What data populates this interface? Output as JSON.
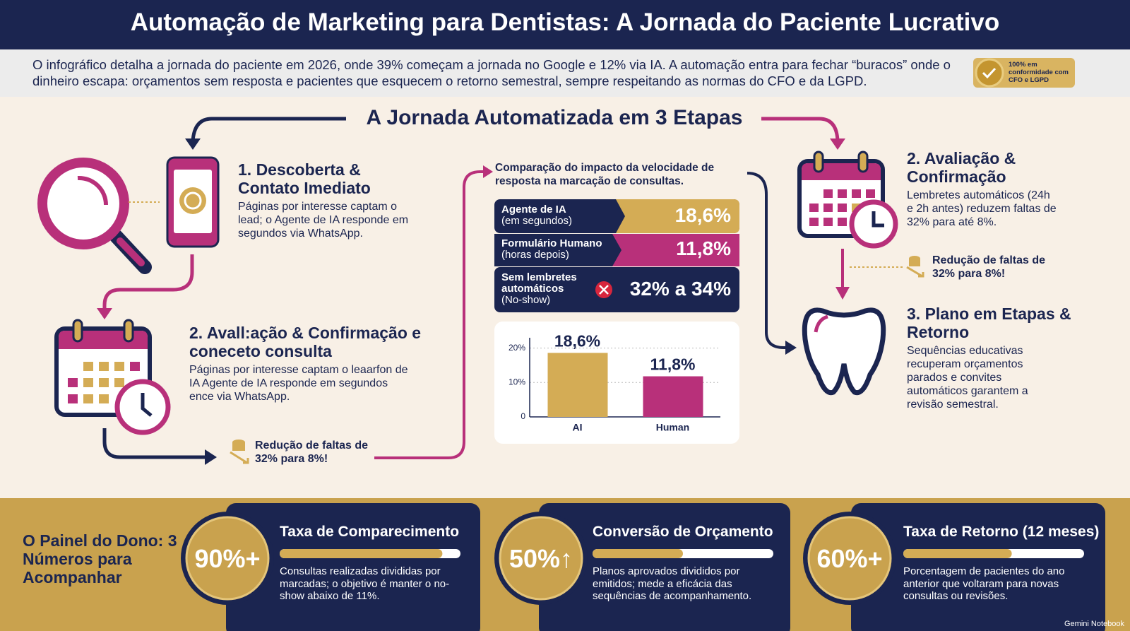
{
  "header": {
    "title": "Automação de Marketing para Dentistas: A Jornada do Paciente Lucrativo"
  },
  "intro": {
    "text": "O infográfico detalha a jornada do paciente em 2026, onde 39% começam a jornada no Google e 12% via IA. A automação entra para fechar “buracos” onde o dinheiro escapa: orçamentos sem resposta e pacientes que esquecem o retorno semestral, sempre respeitando as normas do CFO e da LGPD.",
    "badge": "100% em conformidade com CFO e LGPD"
  },
  "journey": {
    "title": "A Jornada Automatizada em 3 Etapas",
    "steps": [
      {
        "title": "1. Descoberta & Contato Imediato",
        "text": "Páginas por interesse captam o lead; o Agente de IA responde em segundos via WhatsApp."
      },
      {
        "title": "2. Avall:ação & Confirmação e coneceto consulta",
        "text": "Páginas por interesse captam o leaarfon de IA Agente de IA responde em segundos ence via WhatsApp."
      },
      {
        "title": "2. Avaliação & Confirmação",
        "text": "Lembretes automáticos (24h e 2h antes) reduzem faltas de 32% para até 8%."
      },
      {
        "title": "3. Plano em Etapas & Retorno",
        "text": "Sequências educativas recuperam orçamentos parados e convites automáticos garantem a revisão semestral."
      }
    ],
    "notes": [
      "Redução de faltas de 32% para 8%!",
      "Redução de faltas de 32% para 8%!"
    ]
  },
  "comparison": {
    "title": "Comparação do impacto da velocidade de resposta na marcação de consultas.",
    "rows": [
      {
        "label": "Agente de IA",
        "sublabel": "(em segundos)",
        "value": "18,6%"
      },
      {
        "label": "Formulário Humano",
        "sublabel": "(horas depois)",
        "value": "11,8%"
      },
      {
        "label": "Sem lembretes automáticos",
        "sublabel": "(No-show)",
        "value": "32% a 34%"
      }
    ]
  },
  "chart_data": {
    "type": "bar",
    "categories": [
      "AI",
      "Human"
    ],
    "values": [
      18.6,
      11.8
    ],
    "value_labels": [
      "18,6%",
      "11,8%"
    ],
    "colors": [
      "#d4ac55",
      "#b8307a"
    ],
    "ylim": [
      0,
      23
    ],
    "yticks": [
      0,
      {
        "value": 10,
        "label": "10%"
      },
      {
        "value": 20,
        "label": "20%"
      }
    ],
    "grid": true
  },
  "dashboard": {
    "title": "O Painel do Dono: 3 Números para Acompanhar",
    "metrics": [
      {
        "value": {
          "value": 90,
          "label": "90%+"
        },
        "title": "Taxa de Comparecimento",
        "text": "Consultas realizadas divididas por marcadas; o objetivo é manter o no-show abaixo de 11%."
      },
      {
        "value": {
          "value": 50,
          "label": "50%↑"
        },
        "title": "Conversão de Orçamento",
        "text": "Planos aprovados divididos por emitidos; mede a eficácia das sequências de acompanhamento."
      },
      {
        "value": {
          "value": 60,
          "label": "60%+"
        },
        "title": "Taxa de Retorno (12 meses)",
        "text": "Porcentagem de pacientes do ano anterior que voltaram para novas consultas ou revisões."
      }
    ]
  },
  "footer": "Gemini Notebook"
}
